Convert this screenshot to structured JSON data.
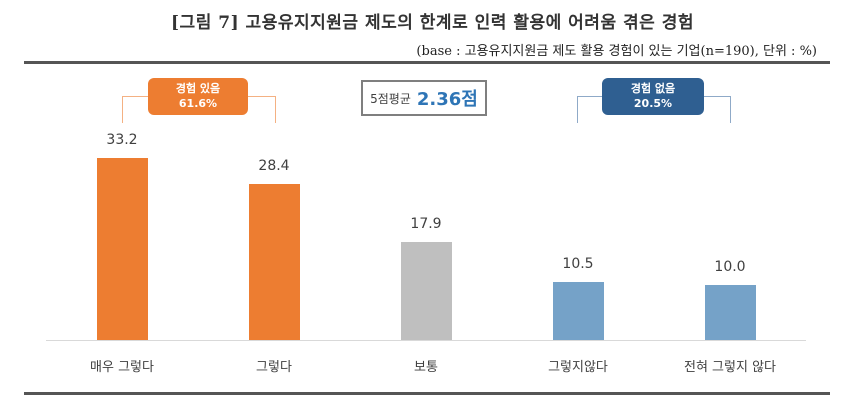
{
  "title": "[그림 7] 고용유지지원금 제도의 한계로 인력 활용에 어려움 겪은 경험",
  "subtitle": "(base : 고용유지지원금 제도 활용 경험이 있는 기업(n=190), 단위 : %)",
  "average": {
    "label": "5점평균",
    "value": "2.36점"
  },
  "groups": [
    {
      "label": "경험 있음",
      "value": "61.6%",
      "color": "#ed7d31"
    },
    {
      "label": "경험 없음",
      "value": "20.5%",
      "color": "#2f5f91"
    }
  ],
  "colors": {
    "positive": "#ed7d31",
    "neutral": "#bfbfbf",
    "negative": "#75a2c8"
  },
  "chart_data": {
    "type": "bar",
    "title": "[그림 7] 고용유지지원금 제도의 한계로 인력 활용에 어려움 겪은 경험",
    "subtitle": "(base : 고용유지지원금 제도 활용 경험이 있는 기업(n=190), 단위 : %)",
    "categories": [
      "매우 그렇다",
      "그렇다",
      "보통",
      "그렇지않다",
      "전혀 그렇지 않다"
    ],
    "values": [
      33.2,
      28.4,
      17.9,
      10.5,
      10.0
    ],
    "labels": [
      "33.2",
      "28.4",
      "17.9",
      "10.5",
      "10.0"
    ],
    "bar_colors": [
      "#ed7d31",
      "#ed7d31",
      "#bfbfbf",
      "#75a2c8",
      "#75a2c8"
    ],
    "xlabel": "",
    "ylabel": "%",
    "ylim": [
      0,
      36
    ],
    "grid": false,
    "annotations": [
      {
        "text": "경험 있음 61.6%",
        "spans": [
          "매우 그렇다",
          "그렇다"
        ]
      },
      {
        "text": "5점평균 2.36점"
      },
      {
        "text": "경험 없음 20.5%",
        "spans": [
          "그렇지않다",
          "전혀 그렇지 않다"
        ]
      }
    ]
  }
}
